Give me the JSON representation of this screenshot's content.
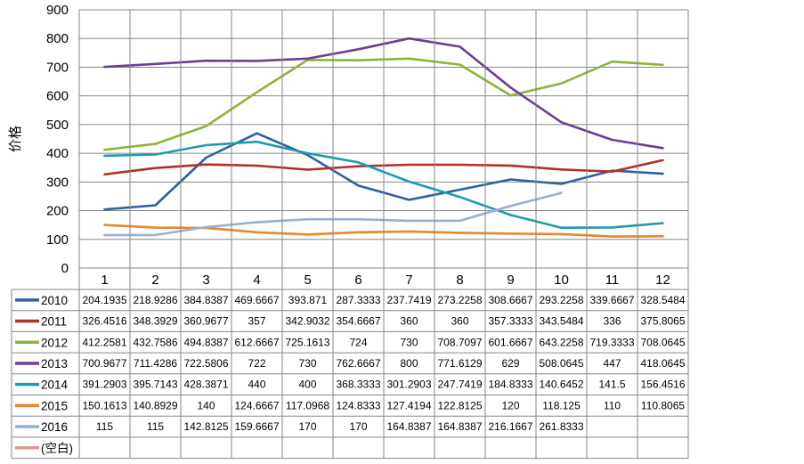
{
  "chart_data": {
    "type": "line",
    "title": "",
    "xlabel": "",
    "ylabel": "价格",
    "ylim": [
      0,
      900
    ],
    "ytick_step": 100,
    "grid": true,
    "legend": "data-table-bottom",
    "categories": [
      "1",
      "2",
      "3",
      "4",
      "5",
      "6",
      "7",
      "8",
      "9",
      "10",
      "11",
      "12"
    ],
    "series": [
      {
        "name": "2010",
        "color": "#2e62a0",
        "values": [
          204.1935,
          218.9286,
          384.8387,
          469.6667,
          393.871,
          287.3333,
          237.7419,
          273.2258,
          308.6667,
          293.2258,
          339.6667,
          328.5484
        ],
        "labels": [
          "204.1935",
          "218.9286",
          "384.8387",
          "469.6667",
          "393.871",
          "287.3333",
          "237.7419",
          "273.2258",
          "308.6667",
          "293.2258",
          "339.6667",
          "328.5484"
        ]
      },
      {
        "name": "2011",
        "color": "#b0302c",
        "values": [
          326.4516,
          348.3929,
          360.9677,
          357,
          342.9032,
          354.6667,
          360,
          360,
          357.3333,
          343.5484,
          336,
          375.8065
        ],
        "labels": [
          "326.4516",
          "348.3929",
          "360.9677",
          "357",
          "342.9032",
          "354.6667",
          "360",
          "360",
          "357.3333",
          "343.5484",
          "336",
          "375.8065"
        ]
      },
      {
        "name": "2012",
        "color": "#8db33c",
        "values": [
          412.2581,
          432.7586,
          494.8387,
          612.6667,
          725.1613,
          724,
          730,
          708.7097,
          601.6667,
          643.2258,
          719.3333,
          708.0645
        ],
        "labels": [
          "412.2581",
          "432.7586",
          "494.8387",
          "612.6667",
          "725.1613",
          "724",
          "730",
          "708.7097",
          "601.6667",
          "643.2258",
          "719.3333",
          "708.0645"
        ]
      },
      {
        "name": "2013",
        "color": "#6c3e96",
        "values": [
          700.9677,
          711.4286,
          722.5806,
          722,
          730,
          762.6667,
          800,
          771.6129,
          629,
          508.0645,
          447,
          418.0645
        ],
        "labels": [
          "700.9677",
          "711.4286",
          "722.5806",
          "722",
          "730",
          "762.6667",
          "800",
          "771.6129",
          "629",
          "508.0645",
          "447",
          "418.0645"
        ]
      },
      {
        "name": "2014",
        "color": "#1f9bb0",
        "values": [
          391.2903,
          395.7143,
          428.3871,
          440,
          400,
          368.3333,
          301.2903,
          247.7419,
          184.8333,
          140.6452,
          141.5,
          156.4516
        ],
        "labels": [
          "391.2903",
          "395.7143",
          "428.3871",
          "440",
          "400",
          "368.3333",
          "301.2903",
          "247.7419",
          "184.8333",
          "140.6452",
          "141.5",
          "156.4516"
        ]
      },
      {
        "name": "2015",
        "color": "#e8872b",
        "values": [
          150.1613,
          140.8929,
          140,
          124.6667,
          117.0968,
          124.8333,
          127.4194,
          122.8125,
          120,
          118.125,
          110,
          110.8065
        ],
        "labels": [
          "150.1613",
          "140.8929",
          "140",
          "124.6667",
          "117.0968",
          "124.8333",
          "127.4194",
          "122.8125",
          "120",
          "118.125",
          "110",
          "110.8065"
        ]
      },
      {
        "name": "2016",
        "color": "#98afd4",
        "values": [
          115,
          115,
          142.8125,
          159.6667,
          170,
          170,
          164.8387,
          164.8387,
          216.1667,
          261.8333,
          null,
          null
        ],
        "labels": [
          "115",
          "115",
          "142.8125",
          "159.6667",
          "170",
          "170",
          "164.8387",
          "164.8387",
          "216.1667",
          "261.8333",
          "",
          ""
        ]
      },
      {
        "name": "(空白)",
        "color": "#e3978e",
        "values": [
          null,
          null,
          null,
          null,
          null,
          null,
          null,
          null,
          null,
          null,
          null,
          null
        ],
        "labels": [
          "",
          "",
          "",
          "",
          "",
          "",
          "",
          "",
          "",
          "",
          "",
          ""
        ]
      }
    ]
  }
}
